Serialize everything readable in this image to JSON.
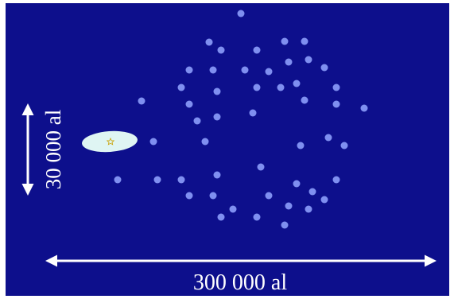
{
  "labels": {
    "height": "30 000 al",
    "width": "300 000 al"
  }
}
